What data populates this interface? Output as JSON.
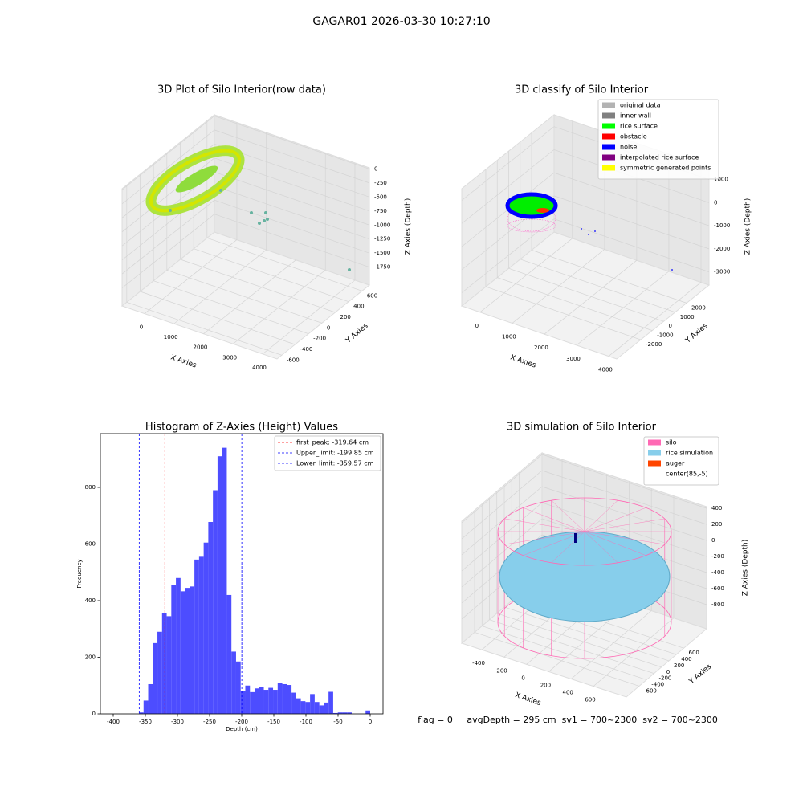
{
  "title": "GAGAR01 2026-03-30 10:27:10",
  "footer": "flag = 0     avgDepth = 295 cm  sv1 = 700~2300  sv2 = 700~2300",
  "chart_data": [
    {
      "type": "scatter3d",
      "title": "3D Plot of Silo Interior(row data)",
      "xlabel": "X Axies",
      "ylabel": "Y Axies",
      "zlabel": "Z Axies (Depth)",
      "xlim": [
        -760,
        4490
      ],
      "ylim": [
        -670,
        710
      ],
      "zlim": [
        -2070,
        20
      ],
      "xticks": [
        0,
        1000,
        2000,
        3000,
        4000
      ],
      "yticks": [
        -600,
        -400,
        -200,
        0,
        200,
        400,
        600
      ],
      "zticks": [
        -1750,
        -1500,
        -1250,
        -1000,
        -750,
        -500,
        -250,
        0
      ]
    },
    {
      "type": "scatter3d",
      "title": "3D classify of Silo Interior",
      "xlabel": "X Axies",
      "ylabel": "Y Axies",
      "zlabel": "Z Axies (Depth)",
      "xlim": [
        -570,
        4250
      ],
      "ylim": [
        -4100,
        3960
      ],
      "zlim": [
        -3570,
        1510
      ],
      "xticks": [
        0,
        1000,
        2000,
        3000,
        4000
      ],
      "yticks": [
        -2000,
        -1000,
        0,
        1000,
        2000
      ],
      "zticks": [
        -3000,
        -2000,
        -1000,
        0,
        1000
      ],
      "legend": [
        {
          "name": "original data",
          "color": "#b3b3b3"
        },
        {
          "name": "inner wall",
          "color": "#808080"
        },
        {
          "name": "rice surface",
          "color": "#00ff00"
        },
        {
          "name": "obstacle",
          "color": "#ff0000"
        },
        {
          "name": "noise",
          "color": "#0000ff"
        },
        {
          "name": "interpolated rice surface",
          "color": "#800080"
        },
        {
          "name": "symmetric generated points",
          "color": "#ffff00"
        }
      ]
    },
    {
      "type": "histogram",
      "title": "Histogram of Z-Axies (Height) Values",
      "xlabel": "Depth (cm)",
      "ylabel": "Frequency",
      "color": "#4d4dff",
      "bins": [
        -360,
        -352.8,
        -345.6,
        -338.4,
        -331.2,
        -324,
        -316.8,
        -309.6,
        -302.4,
        -295.2,
        -288,
        -280.8,
        -273.6,
        -266.4,
        -259.2,
        -252,
        -244.8,
        -237.6,
        -230.4,
        -223.2,
        -216,
        -208.8,
        -201.6,
        -194.4,
        -187.2,
        -180,
        -172.8,
        -165.6,
        -158.4,
        -151.2,
        -144,
        -136.8,
        -129.6,
        -122.4,
        -115.2,
        -108,
        -100.8,
        -93.6,
        -86.4,
        -79.2,
        -72,
        -64.8,
        -57.6,
        -50.4,
        -43.2,
        -36,
        -28.8,
        -21.6,
        -14.4,
        -7.2,
        0
      ],
      "values": [
        5,
        47,
        105,
        250,
        290,
        355,
        345,
        455,
        480,
        433,
        445,
        450,
        545,
        555,
        605,
        678,
        790,
        910,
        940,
        420,
        220,
        185,
        80,
        100,
        77,
        90,
        95,
        85,
        92,
        85,
        110,
        105,
        102,
        75,
        55,
        45,
        42,
        70,
        42,
        30,
        40,
        78,
        3,
        5,
        5,
        5,
        0,
        0,
        0,
        12
      ],
      "xlim": [
        -420,
        20
      ],
      "ylim": [
        0,
        990
      ],
      "xticks": [
        -400,
        -350,
        -300,
        -250,
        -200,
        -150,
        -100,
        -50,
        0
      ],
      "yticks": [
        0,
        200,
        400,
        600,
        800
      ],
      "vlines": [
        {
          "name": "first_peak: -319.64 cm",
          "value": -319.64,
          "color": "#ff0000"
        },
        {
          "name": "Upper_limit: -199.85 cm",
          "value": -199.85,
          "color": "#0000ff"
        },
        {
          "name": "Lower_limit: -359.57 cm",
          "value": -359.57,
          "color": "#0000ff"
        }
      ]
    },
    {
      "type": "scatter3d",
      "title": "3D simulation of Silo Interior",
      "xlabel": "X Axies",
      "ylabel": "Y Axies",
      "zlabel": "Z Axies (Depth)",
      "xlim": [
        -580,
        895
      ],
      "ylim": [
        -946,
        1216
      ],
      "zlim": [
        -1100,
        420
      ],
      "xticks": [
        -400,
        -200,
        0,
        200,
        400,
        600
      ],
      "yticks": [
        -600,
        -400,
        -200,
        0,
        200,
        400,
        600
      ],
      "zticks": [
        -800,
        -600,
        -400,
        -200,
        0,
        200,
        400
      ],
      "legend": [
        {
          "name": "silo",
          "color": "#ff69b4"
        },
        {
          "name": "rice simulation",
          "color": "#87ceeb"
        },
        {
          "name": "auger",
          "color": "#ff4500"
        },
        {
          "name": "center(85,-5)",
          "color": "#ffffff"
        }
      ]
    }
  ]
}
